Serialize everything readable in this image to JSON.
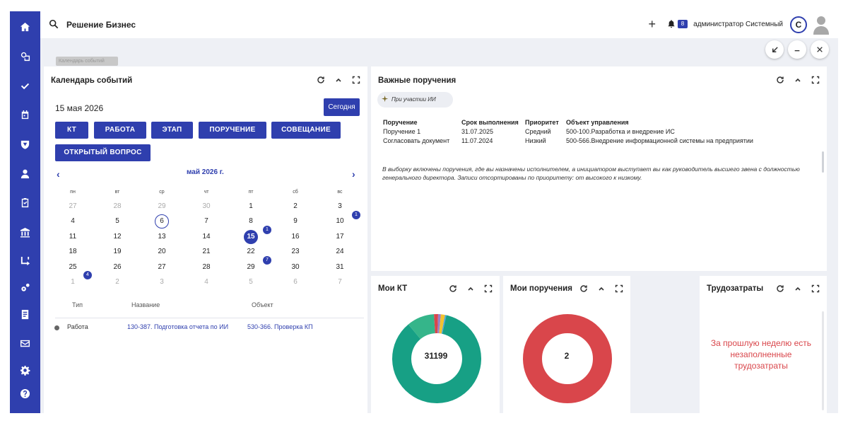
{
  "topbar": {
    "title": "Решение Бизнес",
    "user_name": "администратор Системный",
    "avatar_letter": "С",
    "notification_count": "8",
    "tooltip": "Календарь событий"
  },
  "calendar": {
    "title": "Календарь событий",
    "date_value": "15 мая 2026",
    "today_label": "Сегодня",
    "type_buttons": [
      "КТ",
      "РАБОТА",
      "ЭТАП",
      "ПОРУЧЕНИЕ",
      "СОВЕЩАНИЕ",
      "ОТКРЫТЫЙ ВОПРОС"
    ],
    "month_label": "май 2026 г.",
    "weekdays": [
      "пн",
      "вт",
      "ср",
      "чт",
      "пт",
      "сб",
      "вс"
    ],
    "weeks": [
      [
        "27",
        "28",
        "29",
        "30",
        "1",
        "2",
        "3"
      ],
      [
        "4",
        "5",
        "6",
        "7",
        "8",
        "9",
        "10"
      ],
      [
        "11",
        "12",
        "13",
        "14",
        "15",
        "16",
        "17"
      ],
      [
        "18",
        "19",
        "20",
        "21",
        "22",
        "23",
        "24"
      ],
      [
        "25",
        "26",
        "27",
        "28",
        "29",
        "30",
        "31"
      ],
      [
        "1",
        "2",
        "3",
        "4",
        "5",
        "6",
        "7"
      ]
    ],
    "event_counts": {
      "d3": "1",
      "d15": "1",
      "d22": "7",
      "d25": "4"
    },
    "events_headers": {
      "type": "Тип",
      "name": "Название",
      "object": "Объект"
    },
    "events": [
      {
        "type": "Работа",
        "name": "130-387. Подготовка отчета по ИИ",
        "object": "530-366. Проверка КП"
      }
    ]
  },
  "important": {
    "title": "Важные поручения",
    "ai_chip": "При участии ИИ",
    "headers": {
      "task": "Поручение",
      "deadline": "Срок выполнения",
      "priority": "Приоритет",
      "object": "Объект управления"
    },
    "rows": [
      {
        "task": "Поручение 1",
        "deadline": "31.07.2025",
        "priority": "Средний",
        "object": "500-100.Разработка и внедрение ИС"
      },
      {
        "task": "Согласовать документ",
        "deadline": "11.07.2024",
        "priority": "Низкий",
        "object": "500-566.Внедрение информационной системы на предприятии"
      }
    ],
    "note": "В выборку включены поручения, где вы назначены исполнителем, а инициатором выступает вы как руководитель высшего звена с должностью генерального директора. Записи отсортированы по приоритету: от высокого к низкому."
  },
  "my_kt": {
    "title": "Мои КТ",
    "center_value": "31199"
  },
  "my_tasks": {
    "title": "Мои поручения",
    "center_value": "2"
  },
  "labor": {
    "title": "Трудозатраты",
    "warning": "За прошлую неделю есть незаполненные трудозатраты"
  },
  "chart_data": [
    {
      "type": "pie",
      "title": "Мои КТ",
      "center_label": "31199",
      "slices": [
        {
          "value": 0.855,
          "color": "#17a085"
        },
        {
          "value": 0.1,
          "color": "#35b58a"
        },
        {
          "value": 0.015,
          "color": "#d9464b"
        },
        {
          "value": 0.01,
          "color": "#9b7ec6"
        },
        {
          "value": 0.015,
          "color": "#f2c230"
        },
        {
          "value": 0.005,
          "color": "#4aa3d8"
        }
      ]
    },
    {
      "type": "pie",
      "title": "Мои поручения",
      "center_label": "2",
      "slices": [
        {
          "value": 1.0,
          "color": "#d9464b"
        }
      ]
    }
  ],
  "colors": {
    "brand": "#2f3fae",
    "teal": "#17a085",
    "red": "#d9464b"
  }
}
